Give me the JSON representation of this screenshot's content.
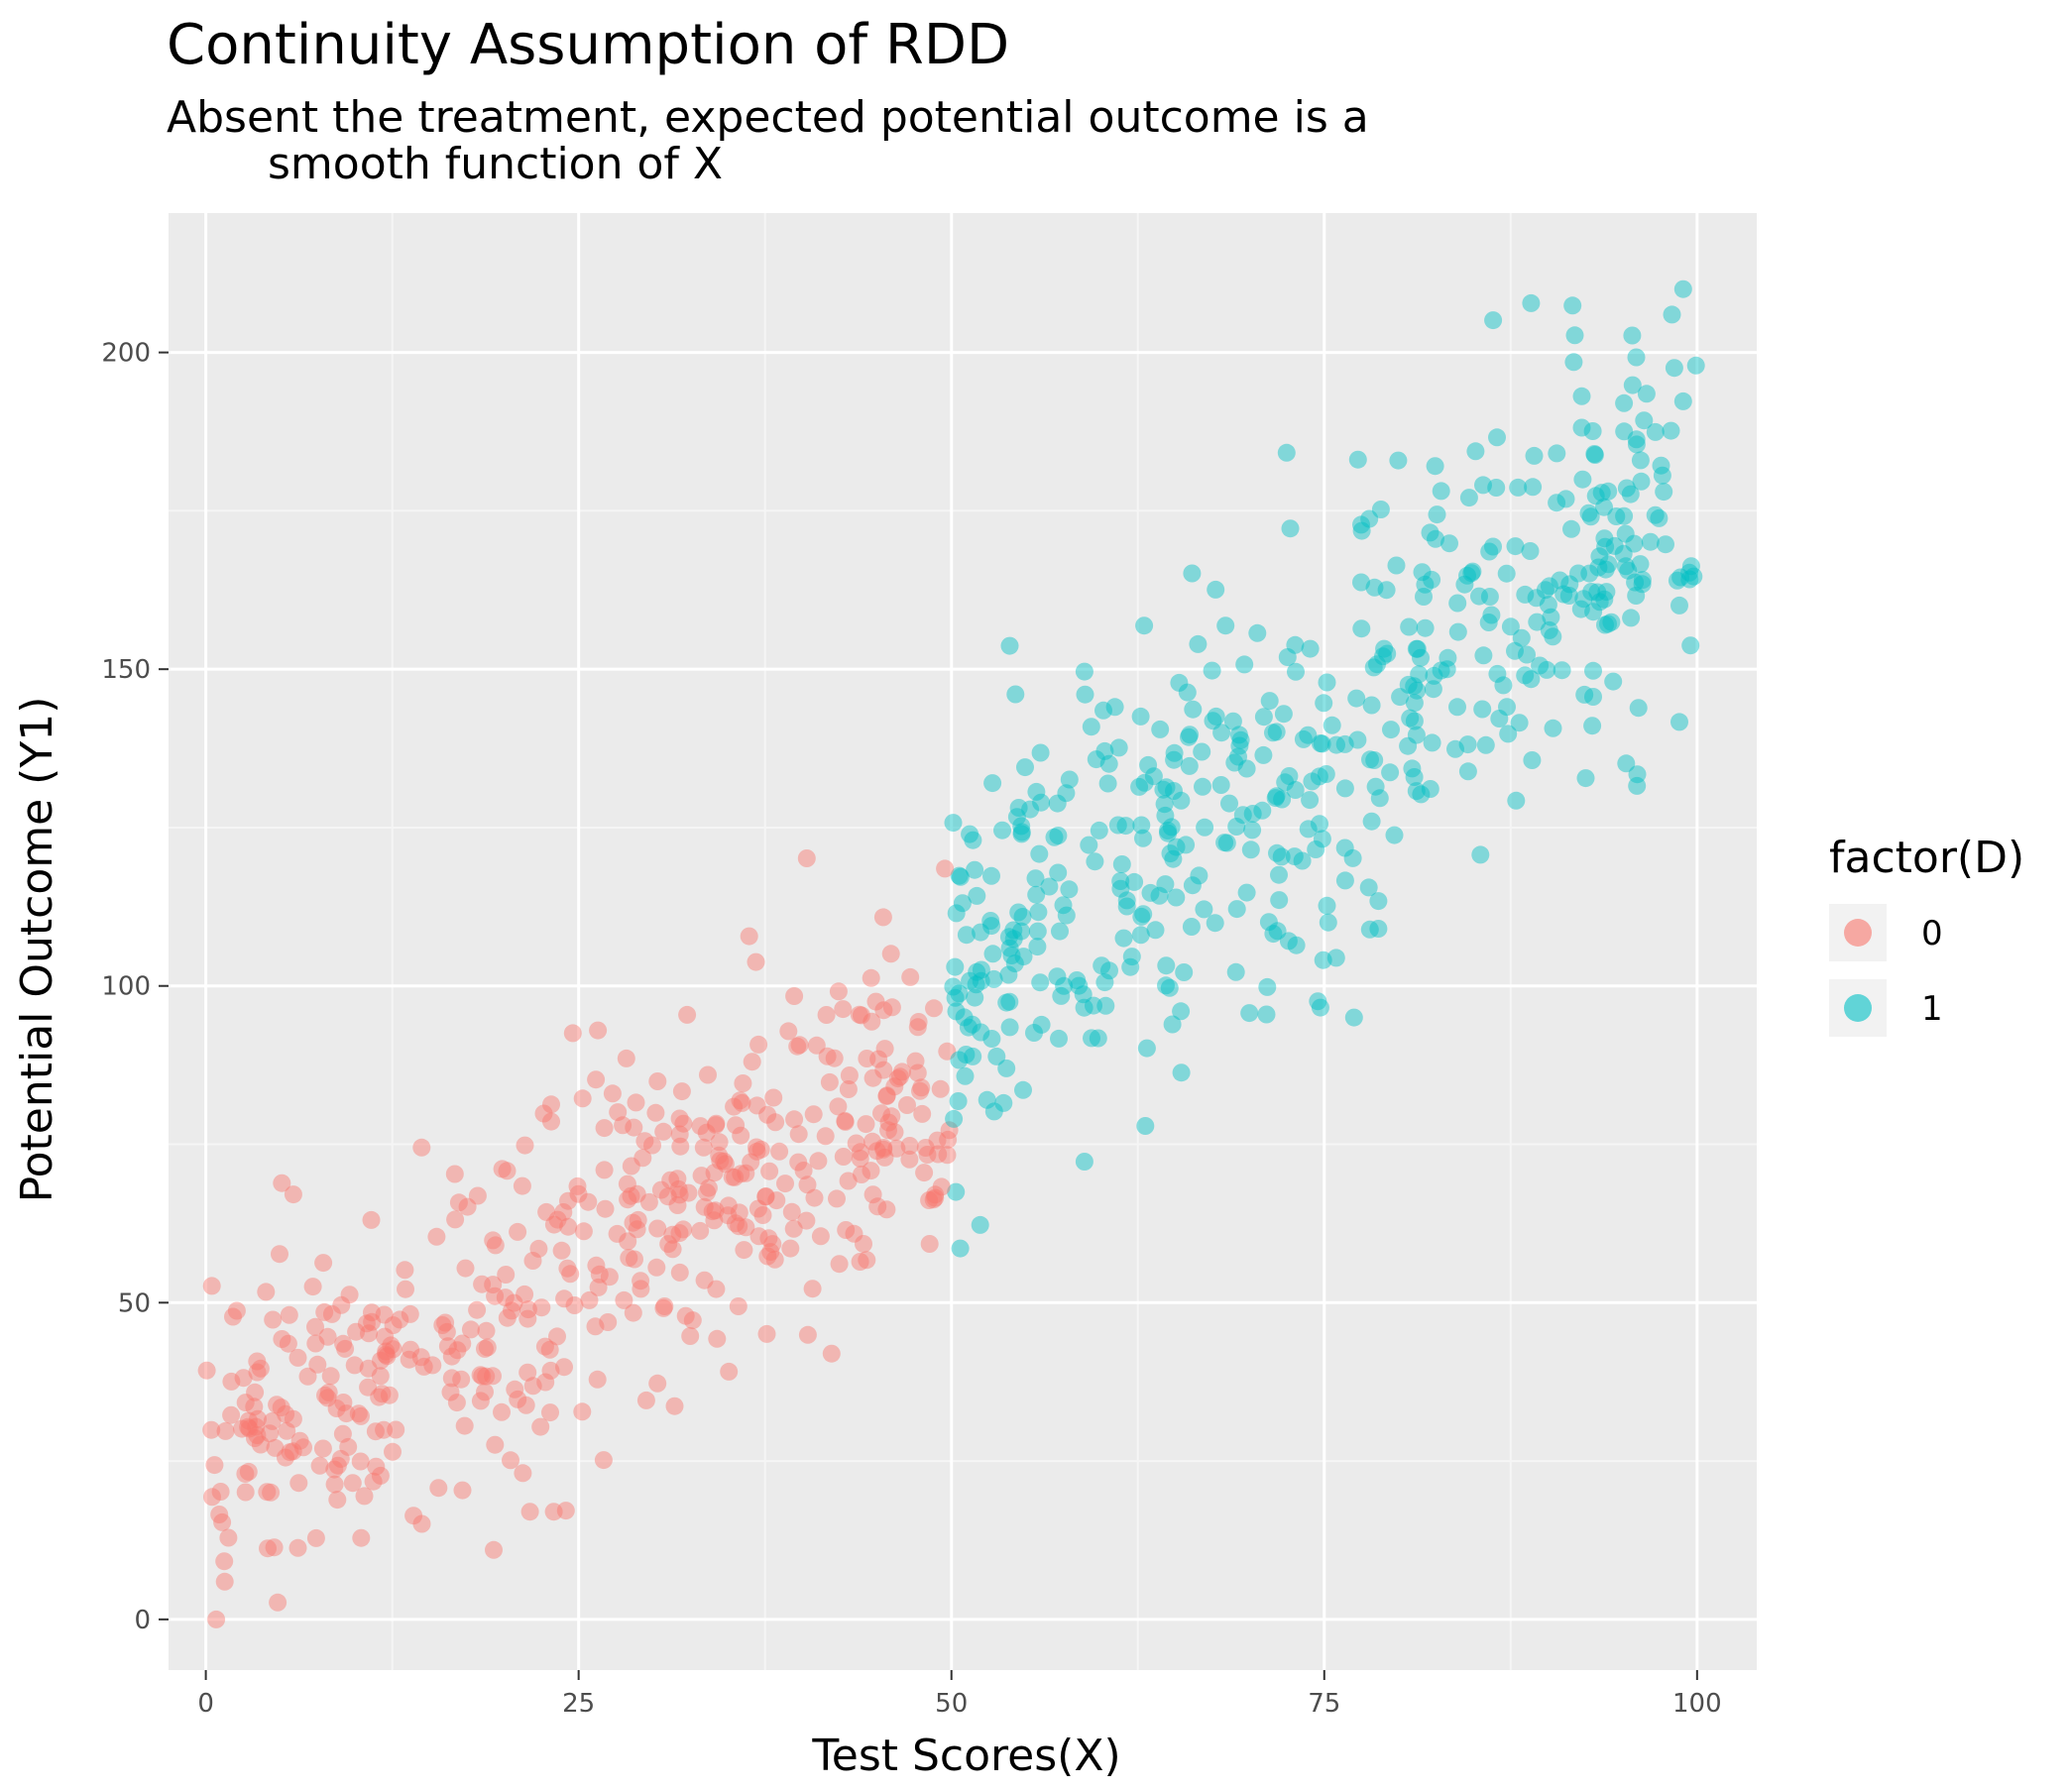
{
  "chart_data": {
    "type": "scatter",
    "title": "Continuity Assumption of RDD",
    "subtitle_lines": [
      "Absent the treatment, expected potential outcome is a",
      "smooth function of X"
    ],
    "xlabel": "Test Scores(X)",
    "ylabel": "Potential Outcome (Y1)",
    "xlim": [
      -2.5,
      104
    ],
    "ylim": [
      -8,
      222
    ],
    "x_ticks": [
      0,
      25,
      50,
      75,
      100
    ],
    "x_tick_labels": [
      "0",
      "25",
      "50",
      "75",
      "100"
    ],
    "y_ticks": [
      0,
      50,
      100,
      150,
      200
    ],
    "y_tick_labels": [
      "0",
      "50",
      "100",
      "150",
      "200"
    ],
    "grid": true,
    "cutoff": 50,
    "legend": {
      "title": "factor(D)",
      "position": "right",
      "entries": [
        "0",
        "1"
      ]
    },
    "series": [
      {
        "name": "0",
        "color": "#F8766D",
        "rule": "x < 50",
        "trend": {
          "intercept": 25,
          "slope": 1.2,
          "noise_sd": 14
        }
      },
      {
        "name": "1",
        "color": "#00BFC4",
        "rule": "x >= 50",
        "trend": {
          "intercept": 25,
          "slope": 1.5,
          "noise_sd": 17
        }
      }
    ],
    "n_points": 1000,
    "point_opacity": 0.45
  },
  "colors": {
    "panel_background": "#EBEBEB",
    "grid_major": "#FFFFFF",
    "grid_minor": "#F5F5F5"
  }
}
